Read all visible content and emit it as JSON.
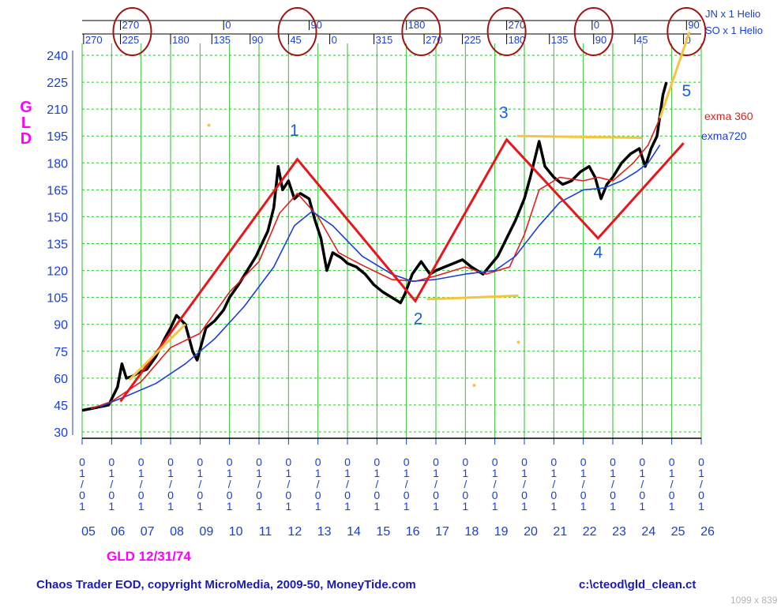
{
  "chart_data": {
    "type": "line",
    "y_axis_label": "G L D",
    "symbol_label": "GLD 12/31/74",
    "ylim": [
      30,
      240
    ],
    "y_ticks": [
      30,
      45,
      60,
      75,
      90,
      105,
      120,
      135,
      150,
      165,
      180,
      195,
      210,
      225,
      240
    ],
    "x_years": [
      "05",
      "06",
      "07",
      "08",
      "09",
      "10",
      "11",
      "12",
      "13",
      "14",
      "15",
      "16",
      "17",
      "18",
      "19",
      "20",
      "21",
      "22",
      "23",
      "24",
      "25",
      "26"
    ],
    "x_date_label": [
      "0",
      "1",
      "/",
      "0",
      "1"
    ],
    "helio": {
      "top_label": "JN x 1 Helio",
      "bottom_label": "SO x 1 Helio",
      "top_ticks": [
        {
          "year": 2006.3,
          "label": "270"
        },
        {
          "year": 2009.8,
          "label": "0"
        },
        {
          "year": 2012.7,
          "label": "90"
        },
        {
          "year": 2016.0,
          "label": "180"
        },
        {
          "year": 2019.4,
          "label": "270"
        },
        {
          "year": 2022.3,
          "label": "0"
        },
        {
          "year": 2025.5,
          "label": "90"
        }
      ],
      "bottom_ticks": [
        {
          "year": 2005.05,
          "label": "270"
        },
        {
          "year": 2006.3,
          "label": "225"
        },
        {
          "year": 2008.0,
          "label": "180"
        },
        {
          "year": 2009.4,
          "label": "135"
        },
        {
          "year": 2010.7,
          "label": "90"
        },
        {
          "year": 2012.0,
          "label": "45"
        },
        {
          "year": 2013.4,
          "label": "0"
        },
        {
          "year": 2014.9,
          "label": "315"
        },
        {
          "year": 2016.6,
          "label": "270"
        },
        {
          "year": 2017.9,
          "label": "225"
        },
        {
          "year": 2019.4,
          "label": "180"
        },
        {
          "year": 2020.85,
          "label": "135"
        },
        {
          "year": 2022.35,
          "label": "90"
        },
        {
          "year": 2023.75,
          "label": "45"
        },
        {
          "year": 2025.4,
          "label": "0"
        }
      ],
      "circled_years": [
        2006.7,
        2012.3,
        2016.5,
        2019.4,
        2022.35,
        2025.5
      ]
    },
    "series": [
      {
        "name": "GLD",
        "color": "#000000",
        "x": [
          2005.0,
          2005.3,
          2005.6,
          2005.9,
          2006.2,
          2006.35,
          2006.5,
          2006.7,
          2006.9,
          2007.2,
          2007.5,
          2007.8,
          2008.0,
          2008.2,
          2008.5,
          2008.75,
          2008.9,
          2009.2,
          2009.5,
          2009.8,
          2010.0,
          2010.3,
          2010.6,
          2010.9,
          2011.1,
          2011.3,
          2011.5,
          2011.65,
          2011.8,
          2012.0,
          2012.2,
          2012.4,
          2012.7,
          2012.9,
          2013.1,
          2013.3,
          2013.5,
          2013.8,
          2014.0,
          2014.3,
          2014.6,
          2014.9,
          2015.2,
          2015.5,
          2015.8,
          2015.95,
          2016.2,
          2016.5,
          2016.8,
          2017.0,
          2017.3,
          2017.6,
          2017.9,
          2018.2,
          2018.6,
          2018.8,
          2019.1,
          2019.4,
          2019.7,
          2020.0,
          2020.2,
          2020.5,
          2020.7,
          2021.0,
          2021.3,
          2021.6,
          2021.9,
          2022.2,
          2022.4,
          2022.6,
          2022.8,
          2023.0,
          2023.3,
          2023.6,
          2023.9,
          2024.1,
          2024.3,
          2024.5,
          2024.7,
          2024.82
        ],
        "values": [
          42,
          43,
          44,
          45,
          55,
          68,
          60,
          61,
          63,
          65,
          72,
          82,
          88,
          95,
          90,
          75,
          70,
          88,
          92,
          98,
          105,
          112,
          120,
          128,
          135,
          142,
          155,
          178,
          165,
          170,
          160,
          163,
          160,
          148,
          138,
          120,
          130,
          127,
          124,
          122,
          118,
          112,
          108,
          105,
          102,
          107,
          118,
          125,
          118,
          120,
          122,
          124,
          126,
          122,
          118,
          122,
          128,
          138,
          148,
          160,
          172,
          192,
          178,
          172,
          168,
          170,
          175,
          178,
          172,
          160,
          168,
          172,
          180,
          185,
          188,
          178,
          188,
          195,
          218,
          225
        ]
      },
      {
        "name": "exma 360",
        "color": "#e0201c",
        "x": [
          2005.3,
          2006.0,
          2007.0,
          2008.0,
          2009.0,
          2010.0,
          2011.0,
          2011.7,
          2012.3,
          2013.0,
          2013.7,
          2014.5,
          2015.5,
          2016.3,
          2017.0,
          2018.0,
          2018.7,
          2019.5,
          2020.0,
          2020.5,
          2021.2,
          2022.0,
          2022.5,
          2023.0,
          2023.7,
          2024.2,
          2024.6
        ],
        "values": [
          43,
          47,
          58,
          77,
          85,
          108,
          125,
          152,
          163,
          150,
          130,
          123,
          115,
          114,
          117,
          122,
          118,
          122,
          140,
          165,
          172,
          170,
          172,
          170,
          180,
          190,
          205
        ]
      },
      {
        "name": "exma720",
        "color": "#1a3fd6",
        "x": [
          2005.6,
          2006.5,
          2007.5,
          2008.5,
          2009.5,
          2010.5,
          2011.5,
          2012.2,
          2012.8,
          2013.5,
          2014.5,
          2015.5,
          2016.2,
          2017.0,
          2018.0,
          2019.0,
          2019.7,
          2020.5,
          2021.2,
          2022.0,
          2022.7,
          2023.3,
          2023.8,
          2024.2,
          2024.6
        ],
        "values": [
          44,
          50,
          57,
          68,
          82,
          100,
          122,
          145,
          153,
          145,
          128,
          118,
          114,
          115,
          118,
          120,
          128,
          145,
          158,
          165,
          166,
          170,
          175,
          180,
          190
        ]
      }
    ],
    "overlays": [
      {
        "kind": "trend",
        "color": "#e8161c",
        "x": [
          2006.3,
          2012.3,
          2016.3,
          2019.4,
          2022.5,
          2025.4
        ],
        "values": [
          47,
          182,
          103,
          193,
          138,
          191
        ]
      },
      {
        "kind": "trend",
        "color": "#f5c441",
        "x": [
          2006.6,
          2008.5
        ],
        "values": [
          59,
          90
        ]
      },
      {
        "kind": "trend",
        "color": "#f5c441",
        "x": [
          2016.7,
          2019.8
        ],
        "values": [
          104,
          106
        ]
      },
      {
        "kind": "trend",
        "color": "#f5c441",
        "x": [
          2019.75,
          2024.0
        ],
        "values": [
          195,
          194
        ]
      },
      {
        "kind": "trend",
        "color": "#f5c441",
        "x": [
          2024.6,
          2025.6
        ],
        "values": [
          205,
          253
        ]
      },
      {
        "kind": "dot",
        "color": "#f5c441",
        "x": 2009.3,
        "value": 201
      },
      {
        "kind": "dot",
        "color": "#f5c441",
        "x": 2018.3,
        "value": 56
      },
      {
        "kind": "dot",
        "color": "#f5c441",
        "x": 2019.8,
        "value": 80
      }
    ],
    "annotations": [
      {
        "label": "1",
        "x": 2012.2,
        "value": 195
      },
      {
        "label": "2",
        "x": 2016.4,
        "value": 90
      },
      {
        "label": "3",
        "x": 2019.3,
        "value": 205
      },
      {
        "label": "4",
        "x": 2022.5,
        "value": 127
      },
      {
        "label": "5",
        "x": 2025.5,
        "value": 217
      }
    ],
    "legend": [
      {
        "label": "exma 360",
        "color": "#e0201c"
      },
      {
        "label": "exma720",
        "color": "#1a3fd6"
      }
    ],
    "grid": true
  },
  "footer": {
    "left": "Chaos Trader EOD, copyright MicroMedia, 2009-50, MoneyTide.com",
    "right": "c:\\cteod\\gld_clean.ct",
    "dims": "1099 x 839"
  }
}
